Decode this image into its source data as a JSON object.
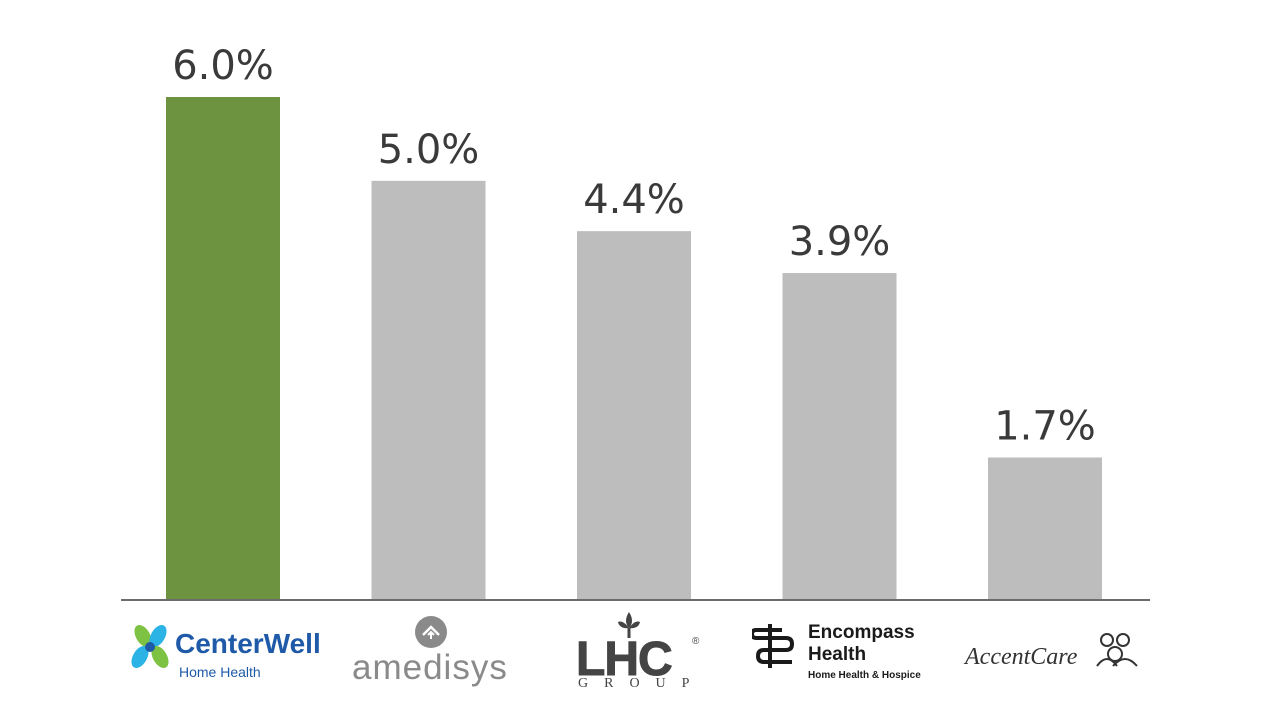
{
  "chart_data": {
    "type": "bar",
    "categories": [
      "CenterWell Home Health",
      "amedisys",
      "LHC GROUP",
      "Encompass Health Home Health & Hospice",
      "AccentCare"
    ],
    "values": [
      6.0,
      5.0,
      4.4,
      3.9,
      1.7
    ],
    "value_labels": [
      "6.0%",
      "5.0%",
      "4.4%",
      "3.9%",
      "1.7%"
    ],
    "ylim": [
      0,
      6.0
    ],
    "grid": false,
    "highlight_index": 0,
    "colors": {
      "highlight": "#6e9340",
      "default": "#bdbdbd",
      "axis": "#6b6b6b",
      "label": "#3a3a3a"
    }
  },
  "logos": {
    "centerwell": {
      "name": "CenterWell",
      "sub": "Home Health",
      "icon": "flower-icon",
      "color": "#1f5aa8",
      "leaf": "#7dc242",
      "petal": "#2bb3e5"
    },
    "amedisys": {
      "name": "amedisys",
      "icon": "house-circle-icon",
      "color": "#8a8a8a"
    },
    "lhc": {
      "name": "LHC",
      "sub": "GROUP",
      "reg": "®",
      "icon": "fleur-de-lis-icon",
      "color": "#444444"
    },
    "encompass": {
      "name1": "Encompass",
      "name2": "Health",
      "sub": "Home Health & Hospice",
      "icon": "encompass-mark-icon",
      "color": "#1a1a1a"
    },
    "accentcare": {
      "name": "AccentCare",
      "icon": "people-rings-icon",
      "color": "#333333"
    }
  }
}
